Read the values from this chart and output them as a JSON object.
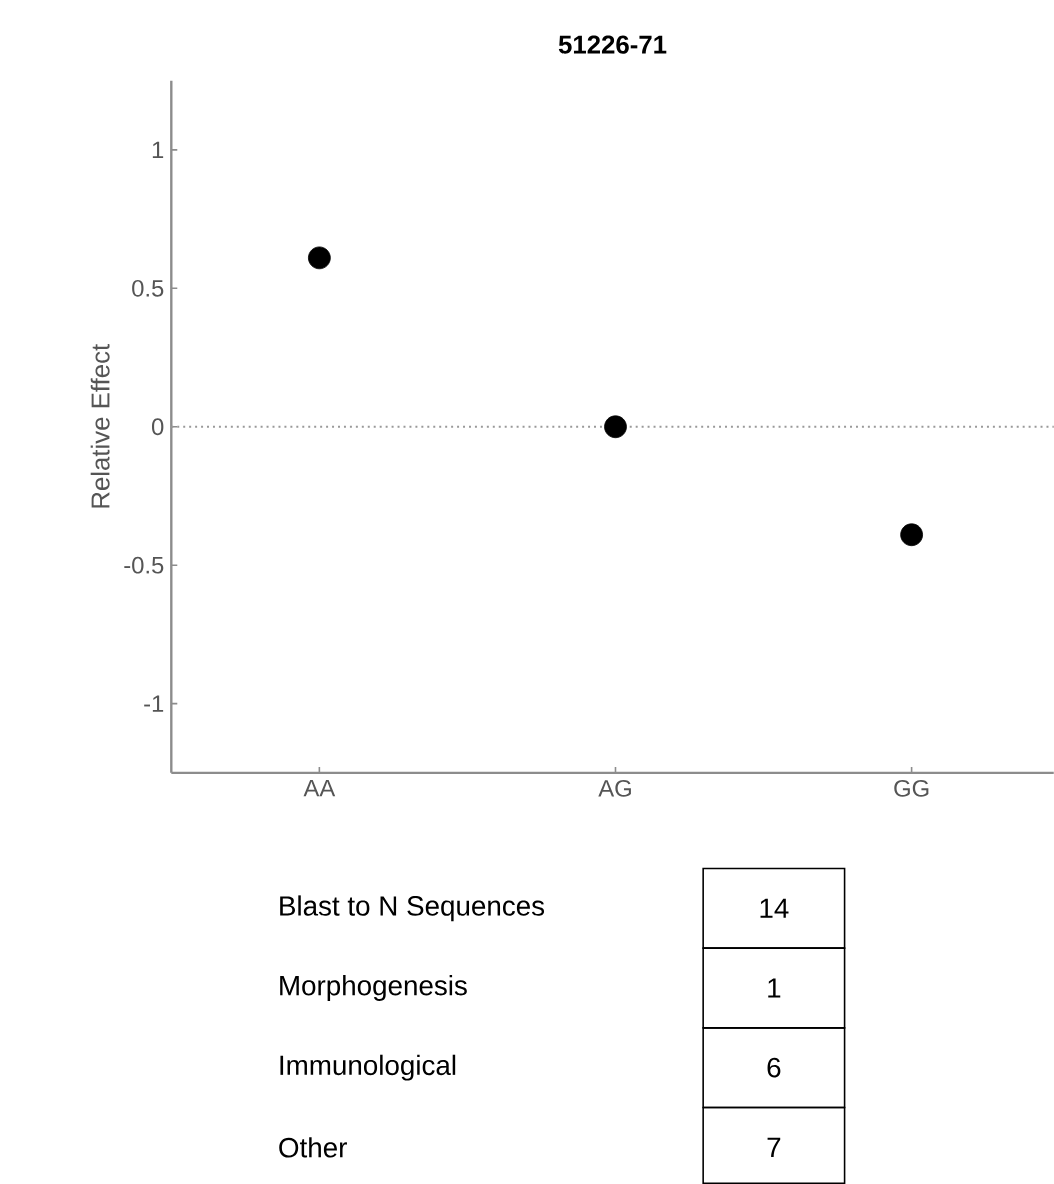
{
  "chart_data": {
    "type": "scatter",
    "title": "51226-71",
    "ylabel": "Relative Effect",
    "categories": [
      "AA",
      "AG",
      "GG"
    ],
    "series": [
      {
        "color": "#000000",
        "values": [
          0.61,
          0,
          -0.39
        ]
      }
    ],
    "ylim": [
      -1.25,
      1.25
    ],
    "yticks": [
      -1,
      -0.5,
      0,
      0.5,
      1
    ],
    "marker": "circle",
    "grid": false,
    "ref_lines": [
      {
        "axis": "y",
        "value": 0,
        "color": "#999999",
        "line_style": "dotted"
      }
    ],
    "annotations": [
      "Blast to N Sequences",
      "14",
      "Morphogenesis",
      "1",
      "Immunological",
      "6",
      "Other",
      "7"
    ]
  }
}
